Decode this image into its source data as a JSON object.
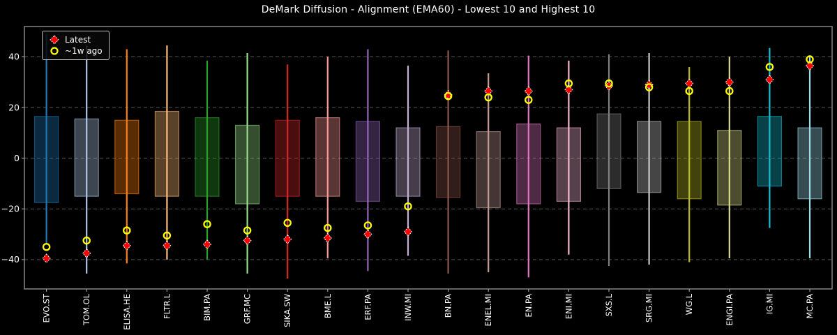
{
  "title": "DeMark Diffusion - Alignment (EMA60) - Lowest 10 and Highest 10",
  "legend": {
    "latest_label": "Latest",
    "week_ago_label": "~1w ago"
  },
  "colors": {
    "background": "#000000",
    "text": "#ffffff",
    "grid": "#5a5a5a",
    "spine": "#9a9a9a",
    "latest_marker_fill": "#ff0000",
    "latest_marker_edge": "#ffffff",
    "week_ago_marker_stroke": "#ffff00"
  },
  "chart_data": {
    "type": "bar",
    "subtype": "range-box-with-latest-and-week-ago-markers",
    "title": "DeMark Diffusion - Alignment (EMA60) - Lowest 10 and Highest 10",
    "xlabel": "",
    "ylabel": "",
    "ylim": [
      -52,
      52
    ],
    "yticks": [
      -40,
      -20,
      0,
      20,
      40
    ],
    "grid": true,
    "grid_style": "dashed",
    "legend_position": "upper-left",
    "categories": [
      "EVO.ST",
      "TOM.OL",
      "ELISA.HE",
      "FLTR.L",
      "BIM.PA",
      "GRF.MC",
      "SIKA.SW",
      "BME.L",
      "ERF.PA",
      "INW.MI",
      "BN.PA",
      "ENEL.MI",
      "EN.PA",
      "ENI.MI",
      "SXS.L",
      "SRG.MI",
      "WG.L",
      "ENGI.PA",
      "IG.MI",
      "MC.PA"
    ],
    "bar_colors": [
      "#1f77b4",
      "#aec7e8",
      "#ff7f0e",
      "#ffbb78",
      "#2ca02c",
      "#98df8a",
      "#d62728",
      "#ff9896",
      "#9467bd",
      "#c5b0d5",
      "#8c564b",
      "#c49c94",
      "#e377c2",
      "#f7b6d2",
      "#7f7f7f",
      "#c7c7c7",
      "#bcbd22",
      "#dbdb8d",
      "#17becf",
      "#9edae5"
    ],
    "series": [
      {
        "name": "whisker_low",
        "values": [
          -34,
          -45.5,
          -41.5,
          -40,
          -40,
          -45.5,
          -47.5,
          -39.5,
          -44.5,
          -38.5,
          -45.5,
          -45,
          -47,
          -38,
          -42.5,
          -42,
          -41,
          -39.5,
          -27.5,
          -39.5
        ]
      },
      {
        "name": "whisker_high",
        "values": [
          49,
          44.5,
          43,
          44.5,
          38.5,
          41.5,
          37,
          40,
          43,
          36.5,
          42.5,
          33.5,
          40.5,
          38.5,
          41,
          41.5,
          36,
          40,
          43.5,
          40.5
        ]
      },
      {
        "name": "box_low",
        "values": [
          -17.5,
          -15,
          -14,
          -15,
          -15,
          -18,
          -15,
          -15,
          -17,
          -15,
          -15.5,
          -19.5,
          -18,
          -17,
          -12,
          -13.5,
          -16,
          -18.5,
          -11,
          -16
        ]
      },
      {
        "name": "box_high",
        "values": [
          16.5,
          15.5,
          15,
          18.5,
          16,
          13,
          15,
          16,
          14.5,
          12,
          12.5,
          10.5,
          13.5,
          12,
          17.5,
          14.5,
          14.5,
          11,
          16.5,
          12
        ]
      },
      {
        "name": "latest",
        "values": [
          -39.5,
          -37.5,
          -34.5,
          -34.5,
          -34,
          -32.5,
          -32,
          -31.5,
          -30,
          -29,
          25,
          26.5,
          26.5,
          27,
          28.5,
          29,
          29.5,
          30,
          31,
          36.5
        ]
      },
      {
        "name": "week_ago",
        "values": [
          -35,
          -32.5,
          -28.5,
          -30.5,
          -26,
          -28.5,
          -25.5,
          -27.5,
          -26.5,
          -19,
          24.5,
          24,
          23,
          29.5,
          29.5,
          28,
          26.5,
          26.5,
          36,
          39
        ]
      }
    ]
  }
}
